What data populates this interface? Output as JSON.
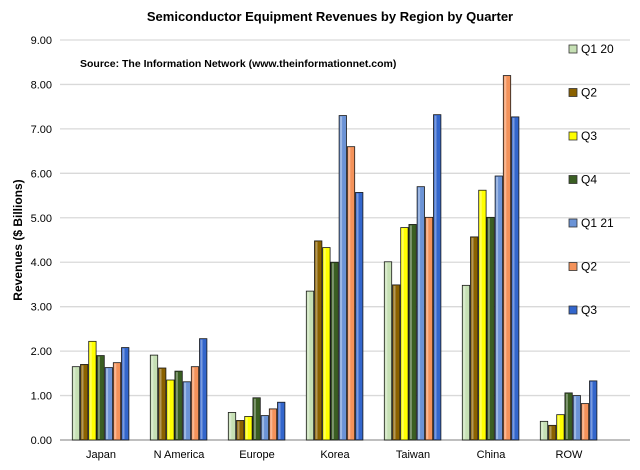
{
  "chart_data": {
    "type": "bar",
    "title": "Semiconductor Equipment Revenues by Region by Quarter",
    "subtitle": "Source: The Information Network (www.theinformationnet.com)",
    "xlabel": "",
    "ylabel": "Revenues ($ Billions)",
    "ylim": [
      0,
      9
    ],
    "yticks": [
      "0.00",
      "1.00",
      "2.00",
      "3.00",
      "4.00",
      "5.00",
      "6.00",
      "7.00",
      "8.00",
      "9.00"
    ],
    "grid": true,
    "legend_position": "right",
    "categories": [
      "Japan",
      "N America",
      "Europe",
      "Korea",
      "Taiwan",
      "China",
      "ROW"
    ],
    "series": [
      {
        "name": "Q1 20",
        "color": "#c6e0b4",
        "values": [
          1.65,
          1.91,
          0.62,
          3.35,
          4.01,
          3.48,
          0.42
        ]
      },
      {
        "name": "Q2",
        "color": "#8a6100",
        "values": [
          1.7,
          1.62,
          0.44,
          4.48,
          3.49,
          4.57,
          0.33
        ]
      },
      {
        "name": "Q3",
        "color": "#ffff00",
        "values": [
          2.22,
          1.35,
          0.53,
          4.33,
          4.78,
          5.62,
          0.57
        ]
      },
      {
        "name": "Q4",
        "color": "#3a5e22",
        "values": [
          1.9,
          1.55,
          0.95,
          4.0,
          4.85,
          5.01,
          1.06
        ]
      },
      {
        "name": "Q1 21",
        "color": "#6b93d6",
        "values": [
          1.63,
          1.31,
          0.55,
          7.3,
          5.7,
          5.94,
          1.0
        ]
      },
      {
        "name": "Q2",
        "color": "#f4925a",
        "values": [
          1.74,
          1.65,
          0.7,
          6.6,
          5.01,
          8.2,
          0.82
        ]
      },
      {
        "name": "Q3",
        "color": "#3366cc",
        "values": [
          2.08,
          2.28,
          0.85,
          5.57,
          7.32,
          7.27,
          1.33
        ]
      }
    ]
  }
}
